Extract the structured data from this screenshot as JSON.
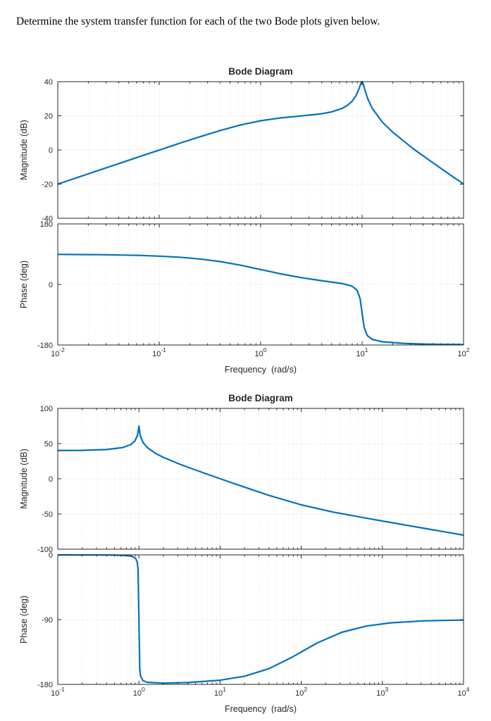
{
  "page": {
    "prompt": "Determine the system transfer function for each of the two Bode plots given below."
  },
  "colors": {
    "curve": "#0072BD",
    "frame": "#262626",
    "grid_major": "rgba(38,38,38,0.18)",
    "grid_minor": "rgba(38,38,38,0.09)",
    "text": "#262626"
  },
  "chart_data": [
    {
      "type": "line",
      "title": "Bode Diagram",
      "xlabel": "Frequency  (rad/s)",
      "x_scale": "log",
      "x_log_range": [
        -2,
        2
      ],
      "x_tick_exponents": [
        -2,
        -1,
        0,
        1,
        2
      ],
      "grid": true,
      "panels": [
        {
          "name": "magnitude",
          "ylabel": "Magnitude (dB)",
          "ylim": [
            -40,
            40
          ],
          "yticks": [
            40,
            20,
            0,
            -20,
            -40
          ],
          "curve": [
            [
              -2,
              -20
            ],
            [
              -1.8,
              -16
            ],
            [
              -1.6,
              -12
            ],
            [
              -1.4,
              -8
            ],
            [
              -1.2,
              -4
            ],
            [
              -1,
              -0.1
            ],
            [
              -0.8,
              3.9
            ],
            [
              -0.6,
              7.7
            ],
            [
              -0.4,
              11.4
            ],
            [
              -0.2,
              14.6
            ],
            [
              0,
              17.1
            ],
            [
              0.2,
              18.8
            ],
            [
              0.4,
              19.9
            ],
            [
              0.6,
              21.2
            ],
            [
              0.7,
              22.3
            ],
            [
              0.8,
              24.3
            ],
            [
              0.85,
              25.9
            ],
            [
              0.9,
              28.4
            ],
            [
              0.94,
              31.8
            ],
            [
              0.97,
              35.9
            ],
            [
              0.99,
              39.3
            ],
            [
              1,
              40
            ],
            [
              1.01,
              38.9
            ],
            [
              1.03,
              34.7
            ],
            [
              1.06,
              29.4
            ],
            [
              1.1,
              24.4
            ],
            [
              1.2,
              16.3
            ],
            [
              1.3,
              10.5
            ],
            [
              1.5,
              0.9
            ],
            [
              1.7,
              -7.6
            ],
            [
              1.85,
              -13.8
            ],
            [
              2,
              -19.9
            ]
          ]
        },
        {
          "name": "phase",
          "ylabel": "Phase (deg)",
          "ylim": [
            -180,
            180
          ],
          "yticks": [
            180,
            0,
            -180
          ],
          "curve": [
            [
              -2,
              89.4
            ],
            [
              -1.6,
              88.5
            ],
            [
              -1.2,
              86.4
            ],
            [
              -1,
              84.2
            ],
            [
              -0.8,
              80.9
            ],
            [
              -0.6,
              75.8
            ],
            [
              -0.4,
              68.1
            ],
            [
              -0.2,
              57.4
            ],
            [
              0,
              44.4
            ],
            [
              0.2,
              31.3
            ],
            [
              0.4,
              20.2
            ],
            [
              0.6,
              11.4
            ],
            [
              0.8,
              3
            ],
            [
              0.9,
              -4.9
            ],
            [
              0.95,
              -17
            ],
            [
              0.98,
              -41.3
            ],
            [
              1,
              -84.3
            ],
            [
              1.02,
              -127
            ],
            [
              1.05,
              -151.5
            ],
            [
              1.1,
              -163.3
            ],
            [
              1.2,
              -170.4
            ],
            [
              1.4,
              -175
            ],
            [
              1.6,
              -177
            ],
            [
              1.8,
              -178.2
            ],
            [
              2,
              -178.8
            ]
          ]
        }
      ]
    },
    {
      "type": "line",
      "title": "Bode Diagram",
      "xlabel": "Frequency  (rad/s)",
      "x_scale": "log",
      "x_log_range": [
        -1,
        4
      ],
      "x_tick_exponents": [
        -1,
        0,
        1,
        2,
        3,
        4
      ],
      "grid": true,
      "panels": [
        {
          "name": "magnitude",
          "ylabel": "Magnitude (dB)",
          "ylim": [
            -100,
            100
          ],
          "yticks": [
            100,
            50,
            0,
            -50,
            -100
          ],
          "curve": [
            [
              -1,
              40.1
            ],
            [
              -0.7,
              40.4
            ],
            [
              -0.4,
              41.5
            ],
            [
              -0.2,
              44.4
            ],
            [
              -0.1,
              48.6
            ],
            [
              -0.05,
              53.7
            ],
            [
              -0.02,
              61
            ],
            [
              -0.01,
              66.2
            ],
            [
              0,
              74.9
            ],
            [
              0.01,
              66
            ],
            [
              0.02,
              60.2
            ],
            [
              0.05,
              51.7
            ],
            [
              0.1,
              44.7
            ],
            [
              0.2,
              36.4
            ],
            [
              0.3,
              30.5
            ],
            [
              0.5,
              20.9
            ],
            [
              0.7,
              12.4
            ],
            [
              1,
              0.1
            ],
            [
              1.3,
              -11.8
            ],
            [
              1.6,
              -23.4
            ],
            [
              2,
              -37
            ],
            [
              2.4,
              -47.4
            ],
            [
              2.8,
              -55.9
            ],
            [
              3.2,
              -64
            ],
            [
              3.6,
              -72
            ],
            [
              4,
              -80
            ]
          ]
        },
        {
          "name": "phase",
          "ylabel": "Phase (deg)",
          "ylim": [
            -180,
            0
          ],
          "yticks": [
            0,
            -90,
            -180
          ],
          "curve": [
            [
              -1,
              -0.1
            ],
            [
              -0.5,
              -0.2
            ],
            [
              -0.3,
              -0.4
            ],
            [
              -0.15,
              -1.1
            ],
            [
              -0.08,
              -2.3
            ],
            [
              -0.04,
              -5.1
            ],
            [
              -0.02,
              -10.5
            ],
            [
              -0.01,
              -20.6
            ],
            [
              0,
              -89.4
            ],
            [
              0.01,
              -157.8
            ],
            [
              0.02,
              -168.3
            ],
            [
              0.05,
              -174.8
            ],
            [
              0.1,
              -177.1
            ],
            [
              0.3,
              -178.2
            ],
            [
              0.6,
              -177.5
            ],
            [
              1,
              -174.2
            ],
            [
              1.3,
              -168.7
            ],
            [
              1.6,
              -158.3
            ],
            [
              1.9,
              -141.5
            ],
            [
              2,
              -135
            ],
            [
              2.2,
              -122.3
            ],
            [
              2.5,
              -107.6
            ],
            [
              2.8,
              -99
            ],
            [
              3.1,
              -94.5
            ],
            [
              3.5,
              -91.8
            ],
            [
              4,
              -90.6
            ]
          ]
        }
      ]
    }
  ]
}
